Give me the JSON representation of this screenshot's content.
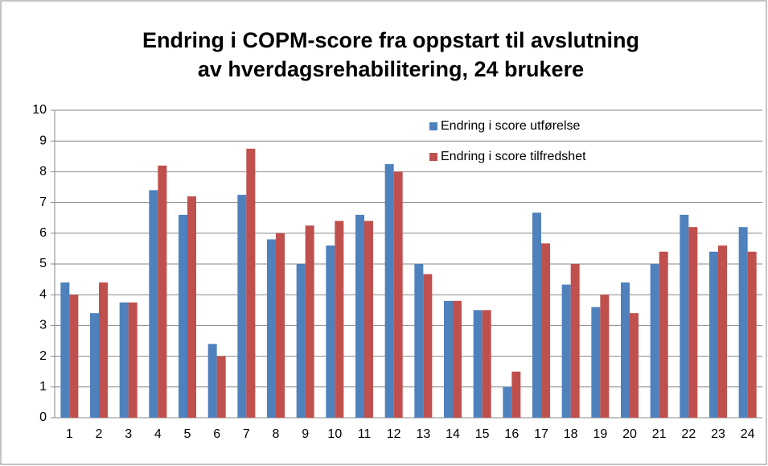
{
  "chart_data": {
    "type": "bar",
    "title": [
      "Endring i COPM-score fra oppstart til avslutning",
      "av hverdagsrehabilitering, 24 brukere"
    ],
    "categories": [
      "1",
      "2",
      "3",
      "4",
      "5",
      "6",
      "7",
      "8",
      "9",
      "10",
      "11",
      "12",
      "13",
      "14",
      "15",
      "16",
      "17",
      "18",
      "19",
      "20",
      "21",
      "22",
      "23",
      "24"
    ],
    "series": [
      {
        "name": "Endring i score utførelse",
        "color": "#4f81bd",
        "values": [
          4.4,
          3.4,
          3.75,
          7.4,
          6.6,
          2.4,
          7.25,
          5.8,
          5.0,
          5.6,
          6.6,
          8.25,
          5.0,
          3.8,
          3.5,
          1.0,
          6.67,
          4.33,
          3.6,
          4.4,
          5.0,
          6.6,
          5.4,
          6.2
        ]
      },
      {
        "name": "Endring i score tilfredshet",
        "color": "#c0504d",
        "values": [
          4.0,
          4.4,
          3.75,
          8.2,
          7.2,
          2.0,
          8.75,
          6.0,
          6.25,
          6.4,
          6.4,
          8.0,
          4.67,
          3.8,
          3.5,
          1.5,
          5.67,
          5.0,
          4.0,
          3.4,
          5.4,
          6.2,
          5.6,
          5.4
        ]
      }
    ],
    "ylim": [
      0,
      10
    ],
    "yticks": [
      0,
      1,
      2,
      3,
      4,
      5,
      6,
      7,
      8,
      9,
      10
    ],
    "grid": true,
    "legend": "upper right"
  }
}
